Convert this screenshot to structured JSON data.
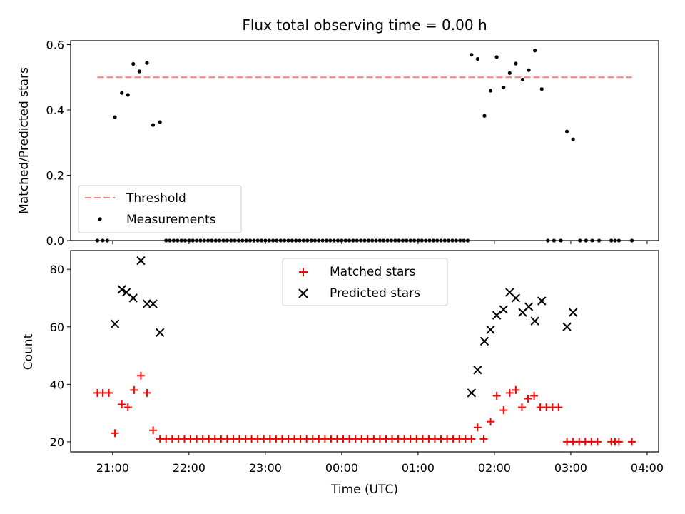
{
  "chart_data": [
    {
      "type": "scatter",
      "title": "Flux total observing time = 0.00 h",
      "xlabel": "",
      "ylabel": "Matched/Predicted stars",
      "xlim_hours": [
        20.45,
        28.15
      ],
      "ylim": [
        0,
        0.612
      ],
      "yticks": [
        0.0,
        0.2,
        0.4,
        0.6
      ],
      "yticklabels": [
        "0.0",
        "0.2",
        "0.4",
        "0.6"
      ],
      "threshold": {
        "name": "Threshold",
        "value": 0.5,
        "x_start": 20.8,
        "x_end": 27.8,
        "color": "#ff7f7f"
      },
      "series": [
        {
          "name": "Measurements",
          "color": "#000000",
          "marker": "dot",
          "points": [
            [
              20.8,
              0
            ],
            [
              20.87,
              0
            ],
            [
              20.93,
              0
            ],
            [
              21.03,
              0.378
            ],
            [
              21.12,
              0.452
            ],
            [
              21.2,
              0.446
            ],
            [
              21.27,
              0.541
            ],
            [
              21.35,
              0.518
            ],
            [
              21.45,
              0.544
            ],
            [
              21.53,
              0.354
            ],
            [
              21.62,
              0.363
            ],
            [
              21.7,
              0
            ],
            [
              21.75,
              0
            ],
            [
              21.8,
              0
            ],
            [
              21.85,
              0
            ],
            [
              21.9,
              0
            ],
            [
              21.95,
              0
            ],
            [
              22.0,
              0
            ],
            [
              22.05,
              0
            ],
            [
              22.1,
              0
            ],
            [
              22.15,
              0
            ],
            [
              22.2,
              0
            ],
            [
              22.25,
              0
            ],
            [
              22.3,
              0
            ],
            [
              22.35,
              0
            ],
            [
              22.4,
              0
            ],
            [
              22.45,
              0
            ],
            [
              22.5,
              0
            ],
            [
              22.55,
              0
            ],
            [
              22.6,
              0
            ],
            [
              22.65,
              0
            ],
            [
              22.7,
              0
            ],
            [
              22.75,
              0
            ],
            [
              22.8,
              0
            ],
            [
              22.85,
              0
            ],
            [
              22.9,
              0
            ],
            [
              22.95,
              0
            ],
            [
              23.0,
              0
            ],
            [
              23.05,
              0
            ],
            [
              23.1,
              0
            ],
            [
              23.15,
              0
            ],
            [
              23.2,
              0
            ],
            [
              23.25,
              0
            ],
            [
              23.3,
              0
            ],
            [
              23.35,
              0
            ],
            [
              23.4,
              0
            ],
            [
              23.45,
              0
            ],
            [
              23.5,
              0
            ],
            [
              23.55,
              0
            ],
            [
              23.6,
              0
            ],
            [
              23.65,
              0
            ],
            [
              23.7,
              0
            ],
            [
              23.75,
              0
            ],
            [
              23.8,
              0
            ],
            [
              23.85,
              0
            ],
            [
              23.9,
              0
            ],
            [
              23.95,
              0
            ],
            [
              24.0,
              0
            ],
            [
              24.05,
              0
            ],
            [
              24.1,
              0
            ],
            [
              24.15,
              0
            ],
            [
              24.2,
              0
            ],
            [
              24.25,
              0
            ],
            [
              24.3,
              0
            ],
            [
              24.35,
              0
            ],
            [
              24.4,
              0
            ],
            [
              24.45,
              0
            ],
            [
              24.5,
              0
            ],
            [
              24.55,
              0
            ],
            [
              24.6,
              0
            ],
            [
              24.65,
              0
            ],
            [
              24.7,
              0
            ],
            [
              24.75,
              0
            ],
            [
              24.8,
              0
            ],
            [
              24.85,
              0
            ],
            [
              24.9,
              0
            ],
            [
              24.95,
              0
            ],
            [
              25.0,
              0
            ],
            [
              25.05,
              0
            ],
            [
              25.1,
              0
            ],
            [
              25.15,
              0
            ],
            [
              25.2,
              0
            ],
            [
              25.25,
              0
            ],
            [
              25.3,
              0
            ],
            [
              25.35,
              0
            ],
            [
              25.4,
              0
            ],
            [
              25.45,
              0
            ],
            [
              25.5,
              0
            ],
            [
              25.55,
              0
            ],
            [
              25.6,
              0
            ],
            [
              25.65,
              0
            ],
            [
              25.7,
              0.569
            ],
            [
              25.78,
              0.556
            ],
            [
              25.87,
              0.382
            ],
            [
              25.95,
              0.459
            ],
            [
              26.03,
              0.562
            ],
            [
              26.12,
              0.469
            ],
            [
              26.2,
              0.513
            ],
            [
              26.28,
              0.542
            ],
            [
              26.37,
              0.493
            ],
            [
              26.45,
              0.522
            ],
            [
              26.53,
              0.582
            ],
            [
              26.62,
              0.464
            ],
            [
              26.7,
              0
            ],
            [
              26.78,
              0
            ],
            [
              26.87,
              0
            ],
            [
              26.95,
              0.334
            ],
            [
              27.03,
              0.31
            ],
            [
              27.12,
              0
            ],
            [
              27.2,
              0
            ],
            [
              27.28,
              0
            ],
            [
              27.37,
              0
            ],
            [
              27.53,
              0
            ],
            [
              27.58,
              0
            ],
            [
              27.63,
              0
            ],
            [
              27.8,
              0
            ]
          ]
        }
      ],
      "legend": {
        "placement": "lower-left",
        "entries": [
          "Threshold",
          "Measurements"
        ]
      }
    },
    {
      "type": "scatter",
      "title": "",
      "xlabel": "Time (UTC)",
      "ylabel": "Count",
      "xlim_hours": [
        20.45,
        28.15
      ],
      "ylim": [
        16.5,
        86.5
      ],
      "yticks": [
        20,
        40,
        60,
        80
      ],
      "yticklabels": [
        "20",
        "40",
        "60",
        "80"
      ],
      "xticks_hours": [
        21,
        22,
        23,
        24,
        25,
        26,
        27,
        28
      ],
      "xticklabels": [
        "21:00",
        "22:00",
        "23:00",
        "00:00",
        "01:00",
        "02:00",
        "03:00",
        "04:00"
      ],
      "series": [
        {
          "name": "Matched stars",
          "color": "#ff0000",
          "marker": "plus",
          "points": [
            [
              20.8,
              37
            ],
            [
              20.87,
              37
            ],
            [
              20.95,
              37
            ],
            [
              21.03,
              23
            ],
            [
              21.12,
              33
            ],
            [
              21.2,
              32
            ],
            [
              21.28,
              38
            ],
            [
              21.37,
              43
            ],
            [
              21.45,
              37
            ],
            [
              21.53,
              24
            ],
            [
              21.62,
              21
            ],
            [
              21.7,
              21
            ],
            [
              21.78,
              21
            ],
            [
              21.86,
              21
            ],
            [
              21.94,
              21
            ],
            [
              22.02,
              21
            ],
            [
              22.1,
              21
            ],
            [
              22.18,
              21
            ],
            [
              22.26,
              21
            ],
            [
              22.34,
              21
            ],
            [
              22.42,
              21
            ],
            [
              22.5,
              21
            ],
            [
              22.58,
              21
            ],
            [
              22.66,
              21
            ],
            [
              22.74,
              21
            ],
            [
              22.82,
              21
            ],
            [
              22.9,
              21
            ],
            [
              22.98,
              21
            ],
            [
              23.06,
              21
            ],
            [
              23.14,
              21
            ],
            [
              23.22,
              21
            ],
            [
              23.3,
              21
            ],
            [
              23.38,
              21
            ],
            [
              23.46,
              21
            ],
            [
              23.54,
              21
            ],
            [
              23.62,
              21
            ],
            [
              23.7,
              21
            ],
            [
              23.78,
              21
            ],
            [
              23.86,
              21
            ],
            [
              23.94,
              21
            ],
            [
              24.02,
              21
            ],
            [
              24.1,
              21
            ],
            [
              24.18,
              21
            ],
            [
              24.26,
              21
            ],
            [
              24.34,
              21
            ],
            [
              24.42,
              21
            ],
            [
              24.5,
              21
            ],
            [
              24.58,
              21
            ],
            [
              24.66,
              21
            ],
            [
              24.74,
              21
            ],
            [
              24.82,
              21
            ],
            [
              24.9,
              21
            ],
            [
              24.98,
              21
            ],
            [
              25.06,
              21
            ],
            [
              25.14,
              21
            ],
            [
              25.22,
              21
            ],
            [
              25.3,
              21
            ],
            [
              25.38,
              21
            ],
            [
              25.46,
              21
            ],
            [
              25.54,
              21
            ],
            [
              25.62,
              21
            ],
            [
              25.7,
              21
            ],
            [
              25.78,
              25
            ],
            [
              25.86,
              21
            ],
            [
              25.95,
              27
            ],
            [
              26.03,
              36
            ],
            [
              26.12,
              31
            ],
            [
              26.2,
              37
            ],
            [
              26.28,
              38
            ],
            [
              26.36,
              32
            ],
            [
              26.44,
              35
            ],
            [
              26.52,
              36
            ],
            [
              26.6,
              32
            ],
            [
              26.68,
              32
            ],
            [
              26.76,
              32
            ],
            [
              26.84,
              32
            ],
            [
              26.95,
              20
            ],
            [
              27.03,
              20
            ],
            [
              27.11,
              20
            ],
            [
              27.19,
              20
            ],
            [
              27.27,
              20
            ],
            [
              27.35,
              20
            ],
            [
              27.53,
              20
            ],
            [
              27.58,
              20
            ],
            [
              27.63,
              20
            ],
            [
              27.8,
              20
            ]
          ]
        },
        {
          "name": "Predicted stars",
          "color": "#000000",
          "marker": "x",
          "points": [
            [
              21.03,
              61
            ],
            [
              21.12,
              73
            ],
            [
              21.18,
              72
            ],
            [
              21.27,
              70
            ],
            [
              21.37,
              83
            ],
            [
              21.45,
              68
            ],
            [
              21.53,
              68
            ],
            [
              21.62,
              58
            ],
            [
              25.7,
              37
            ],
            [
              25.78,
              45
            ],
            [
              25.87,
              55
            ],
            [
              25.95,
              59
            ],
            [
              26.03,
              64
            ],
            [
              26.12,
              66
            ],
            [
              26.2,
              72
            ],
            [
              26.28,
              70
            ],
            [
              26.37,
              65
            ],
            [
              26.45,
              67
            ],
            [
              26.53,
              62
            ],
            [
              26.62,
              69
            ],
            [
              26.95,
              60
            ],
            [
              27.03,
              65
            ]
          ]
        }
      ],
      "legend": {
        "placement": "upper-center",
        "entries": [
          "Matched stars",
          "Predicted stars"
        ]
      }
    }
  ]
}
